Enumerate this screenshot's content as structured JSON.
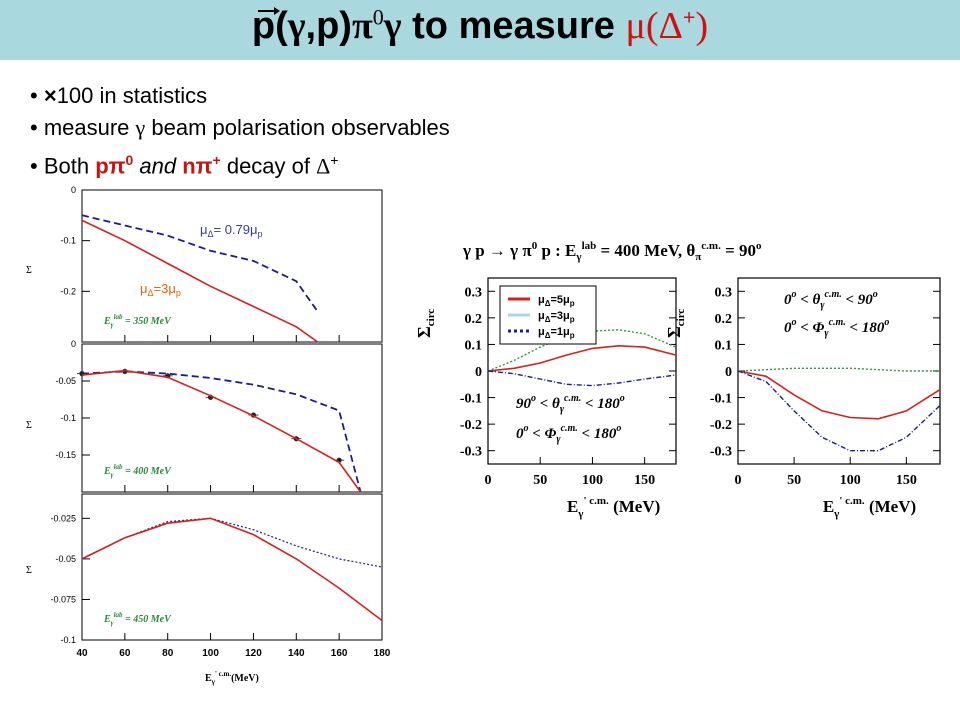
{
  "slide": {
    "title_prefix": "p(",
    "title_gamma": "γ",
    "title_mid": ",p)",
    "title_pi": "π",
    "title_pi_sup": "0",
    "title_gamma2": "γ",
    "title_to_measure": "to measure",
    "title_mu_delta": "μ(Δ",
    "title_plus": "+",
    "title_close": ")"
  },
  "bullets": [
    {
      "icon": "×",
      "text": "100 in statistics"
    },
    {
      "pre": "measure ",
      "sym": "γ",
      "post": " beam polarisation observables"
    },
    {
      "pre": "Both ",
      "p_channel": "pπ",
      "p_sup": "0",
      "and": " and ",
      "n_channel": "nπ",
      "n_sup": "+",
      "post": " decay of ",
      "delta": "Δ",
      "delta_sup": "+"
    }
  ],
  "left_figure": {
    "xlabel": "E",
    "xlabel_sub": "γ",
    "xlabel_sup": "' c.m.",
    "xlabel_unit": "(MeV)",
    "x_ticks": [
      "40",
      "60",
      "80",
      "100",
      "120",
      "140",
      "160",
      "180"
    ],
    "ylabel": "Σ",
    "annot_079": "μ",
    "annot_079_sub": "Δ",
    "annot_079_text": "= 0.79μ",
    "annot_079_sub2": "p",
    "annot_3": "μ",
    "annot_3_sub": "Δ",
    "annot_3_text": "=3μ",
    "annot_3_sub2": "p",
    "panels": [
      {
        "energy_label": "E",
        "energy_sub": "γ",
        "energy_sup": "lab",
        "energy_value": "= 350 MeV",
        "y_ticks": [
          "0",
          "-0.1",
          "-0.2"
        ]
      },
      {
        "energy_label": "E",
        "energy_sub": "γ",
        "energy_sup": "lab",
        "energy_value": "= 400 MeV",
        "y_ticks": [
          "0",
          "-0.05",
          "-0.1",
          "-0.15"
        ]
      },
      {
        "energy_label": "E",
        "energy_sub": "γ",
        "energy_sup": "lab",
        "energy_value": "= 450 MeV",
        "y_ticks": [
          "-0.025",
          "-0.05",
          "-0.075",
          "-0.1"
        ]
      }
    ]
  },
  "right_figure": {
    "header": "γ p → γ π",
    "header_sup0": "0",
    "header_rest": " p  :  E",
    "header_sub": "γ",
    "header_sup_lab": "lab",
    "header_value": " = 400 MeV,  θ",
    "header_sub_pi": "π",
    "header_sup_cm": "c.m.",
    "header_value2": " = 90",
    "header_deg": "o",
    "ylabel": "Σ",
    "ylabel_sub": "circ",
    "y_ticks": [
      "0.3",
      "0.2",
      "0.1",
      "0",
      "-0.1",
      "-0.2",
      "-0.3"
    ],
    "x_ticks": [
      "0",
      "50",
      "100",
      "150"
    ],
    "xlabel": "E",
    "xlabel_sub": "γ",
    "xlabel_sup": "' c.m.",
    "xlabel_unit": "(MeV)",
    "legend": [
      {
        "label": "μ",
        "sub": "Δ",
        "text": "=5μ",
        "sub2": "p",
        "color": "#d62020"
      },
      {
        "label": "μ",
        "sub": "Δ",
        "text": "=3μ",
        "sub2": "p",
        "color": "#a7d8e0"
      },
      {
        "label": "μ",
        "sub": "Δ",
        "text": "=1μ",
        "sub2": "p",
        "color": "#1c1c8c"
      }
    ],
    "panel_a_cut1": "90",
    "panel_a_cut1_rest": " < θ",
    "panel_a_cut1_sub": "γ",
    "panel_a_cut1_sup": "c.m.",
    "panel_a_cut1_end": " < 180",
    "panel_a_cut2": "0",
    "panel_a_cut2_rest": " < Φ",
    "panel_a_cut2_sub": "γ",
    "panel_a_cut2_sup": "c.m.",
    "panel_a_cut2_end": " < 180",
    "panel_b_cut1": "0",
    "panel_b_cut1_rest": " < θ",
    "panel_b_cut1_sub": "γ",
    "panel_b_cut1_sup": "c.m.",
    "panel_b_cut1_end": " < 90",
    "panel_b_cut2": "0",
    "panel_b_cut2_rest": " < Φ",
    "panel_b_cut2_sub": "γ",
    "panel_b_cut2_sup": "c.m.",
    "panel_b_cut2_end": " < 180",
    "deg": "o"
  },
  "colors": {
    "title_bar": "#a9d8de",
    "accent_red": "#d01010",
    "curve_red": "#d62020",
    "curve_blue": "#1c1c8c",
    "curve_green": "#2a9a3a"
  },
  "chart_data": [
    {
      "type": "line",
      "panel": "E_gamma lab = 350 MeV",
      "x": [
        40,
        60,
        80,
        100,
        120,
        140,
        150
      ],
      "ylim": [
        -0.3,
        0
      ],
      "series": [
        {
          "name": "μ_Δ = 0.79μ_p",
          "values": [
            -0.05,
            -0.07,
            -0.09,
            -0.12,
            -0.14,
            -0.18,
            -0.24
          ]
        },
        {
          "name": "μ_Δ = 3μ_p",
          "values": [
            -0.06,
            -0.1,
            -0.145,
            -0.19,
            -0.23,
            -0.27,
            -0.3
          ]
        }
      ]
    },
    {
      "type": "line",
      "panel": "E_gamma lab = 400 MeV",
      "x": [
        40,
        60,
        80,
        100,
        120,
        140,
        160,
        170
      ],
      "ylim": [
        -0.2,
        0
      ],
      "series": [
        {
          "name": "data",
          "values": [
            -0.04,
            -0.037,
            -0.043,
            -0.072,
            -0.096,
            -0.128,
            -0.157,
            null
          ]
        },
        {
          "name": "dashed",
          "values": [
            -0.04,
            -0.037,
            -0.04,
            -0.046,
            -0.055,
            -0.068,
            -0.09,
            -0.2
          ]
        },
        {
          "name": "solid",
          "values": [
            -0.042,
            -0.036,
            -0.045,
            -0.07,
            -0.097,
            -0.128,
            -0.16,
            -0.2
          ]
        }
      ]
    },
    {
      "type": "line",
      "panel": "E_gamma lab = 450 MeV",
      "x": [
        40,
        60,
        80,
        100,
        120,
        140,
        160,
        180
      ],
      "ylim": [
        -0.1,
        -0.01
      ],
      "series": [
        {
          "name": "dotted",
          "values": [
            -0.05,
            -0.037,
            -0.027,
            -0.025,
            -0.032,
            -0.042,
            -0.05,
            -0.055
          ]
        },
        {
          "name": "solid",
          "values": [
            -0.05,
            -0.037,
            -0.028,
            -0.025,
            -0.035,
            -0.05,
            -0.068,
            -0.088
          ]
        }
      ]
    },
    {
      "type": "line",
      "panel": "90° < θ < 180°, 0° < Φ < 180°",
      "x": [
        0,
        25,
        50,
        75,
        100,
        125,
        150,
        180
      ],
      "ylim": [
        -0.35,
        0.35
      ],
      "series": [
        {
          "name": "μ_Δ=5μ_p",
          "values": [
            0,
            0.01,
            0.03,
            0.06,
            0.085,
            0.095,
            0.09,
            0.06
          ]
        },
        {
          "name": "μ_Δ=3μ_p",
          "values": [
            0,
            0.04,
            0.09,
            0.13,
            0.15,
            0.155,
            0.14,
            0.09
          ]
        },
        {
          "name": "μ_Δ=1μ_p",
          "values": [
            0,
            -0.01,
            -0.03,
            -0.05,
            -0.055,
            -0.045,
            -0.03,
            -0.015
          ]
        }
      ]
    },
    {
      "type": "line",
      "panel": "0° < θ < 90°, 0° < Φ < 180°",
      "x": [
        0,
        25,
        50,
        75,
        100,
        125,
        150,
        180
      ],
      "ylim": [
        -0.35,
        0.35
      ],
      "series": [
        {
          "name": "μ_Δ=5μ_p",
          "values": [
            0,
            -0.02,
            -0.09,
            -0.15,
            -0.175,
            -0.18,
            -0.15,
            -0.07
          ]
        },
        {
          "name": "μ_Δ=3μ_p",
          "values": [
            0,
            0.005,
            0.01,
            0.01,
            0.01,
            0.005,
            0,
            0
          ]
        },
        {
          "name": "μ_Δ=1μ_p",
          "values": [
            0,
            -0.04,
            -0.15,
            -0.25,
            -0.3,
            -0.3,
            -0.25,
            -0.13
          ]
        }
      ]
    }
  ]
}
